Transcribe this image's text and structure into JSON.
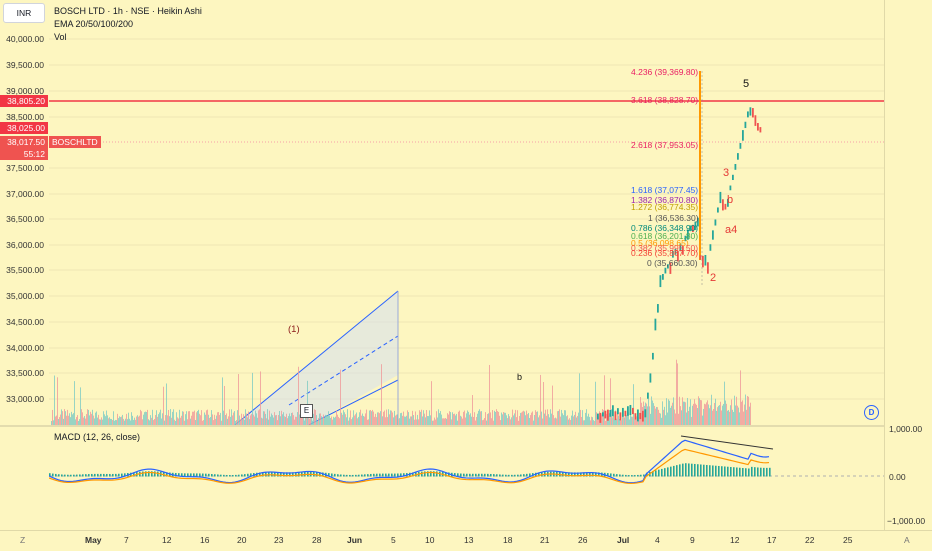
{
  "header": {
    "currency_button": "INR",
    "title_line": "BOSCH LTD · 1h · NSE · Heikin Ashi",
    "indicator_1": "EMA 20/50/100/200",
    "indicator_2": "Vol",
    "macd_label": "MACD (12, 26, close)"
  },
  "price_axis": {
    "labels": [
      "40,000.00",
      "39,500.00",
      "39,000.00",
      "38,500.00",
      "38,000.00",
      "37,500.00",
      "37,000.00",
      "36,500.00",
      "36,000.00",
      "35,500.00",
      "35,000.00",
      "34,500.00",
      "34,000.00",
      "33,500.00",
      "33,000.00"
    ],
    "tag_red_top": "38,805.20",
    "tag_price": "38,025.00",
    "tag_last": "38,017.50",
    "tag_countdown": "55:12",
    "symbol_tag": "BOSCHLTD",
    "colors": {
      "red": "#f23645",
      "pink": "#ef5350"
    }
  },
  "macd_axis": {
    "labels": [
      "1,000.00",
      "0.00",
      "−1,000.00"
    ]
  },
  "time_axis": {
    "corner_left": "Z",
    "corner_right": "A",
    "labels": [
      "May",
      "7",
      "12",
      "16",
      "20",
      "23",
      "28",
      "Jun",
      "5",
      "10",
      "13",
      "18",
      "21",
      "26",
      "Jul",
      "4",
      "9",
      "12",
      "17",
      "22",
      "25"
    ]
  },
  "fib_levels": [
    {
      "text": "4.236 (39,369.80)",
      "color": "#e91e63"
    },
    {
      "text": "3.618 (38,828.70)",
      "color": "#e91e63"
    },
    {
      "text": "2.618 (37,953.05)",
      "color": "#e91e63"
    },
    {
      "text": "1.618 (37,077.45)",
      "color": "#2962ff"
    },
    {
      "text": "1.382 (36,870.80)",
      "color": "#9c27b0"
    },
    {
      "text": "1.272 (36,774.35)",
      "color": "#c0a000"
    },
    {
      "text": "1 (36,536.30)",
      "color": "#555555"
    },
    {
      "text": "0.786 (36,348.90)",
      "color": "#00897b"
    },
    {
      "text": "0.618 (36,201.80)",
      "color": "#4caf50"
    },
    {
      "text": "0.5 (36,098.65)",
      "color": "#ff9800"
    },
    {
      "text": "0.382 (35,995.50)",
      "color": "#ef5350"
    },
    {
      "text": "0.236 (35,867.70)",
      "color": "#f44336"
    },
    {
      "text": "0 (35,660.30)",
      "color": "#555555"
    }
  ],
  "wave_labels": {
    "w5": "5",
    "w3": "3",
    "wb": "b",
    "w4": "a4",
    "w2": "2",
    "w1": "(1)",
    "wb2": "b"
  },
  "buttons": {
    "d": "D",
    "e": "E"
  },
  "chart_data": {
    "type": "candlestick",
    "symbol": "BOSCH LTD",
    "timeframe": "1h",
    "exchange": "NSE",
    "style": "Heikin Ashi",
    "last_price": 38017.5,
    "horizontal_line": 38805.2
  }
}
